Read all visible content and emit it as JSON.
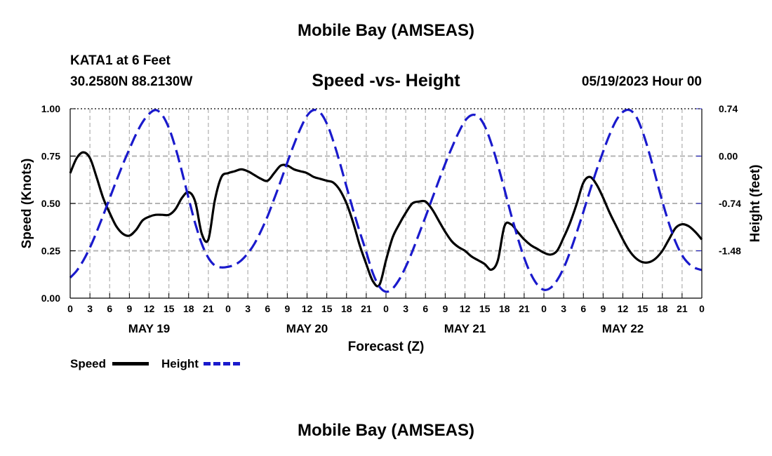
{
  "header": {
    "title": "Mobile Bay (AMSEAS)",
    "station": "KATA1 at 6 Feet",
    "coordinates": "30.2580N  88.2130W",
    "subtitle": "Speed -vs- Height",
    "run_time": "05/19/2023 Hour 00"
  },
  "footer": {
    "title": "Mobile Bay (AMSEAS)"
  },
  "legend": {
    "speed_label": "Speed",
    "height_label": "Height",
    "speed_color": "#000000",
    "height_color": "#1a1acc"
  },
  "chart_data": {
    "type": "line",
    "title": "Speed -vs- Height",
    "xlabel": "Forecast (Z)",
    "ylabel_left": "Speed (Knots)",
    "ylabel_right": "Height (feet)",
    "xlim": [
      0,
      96
    ],
    "ylim_left": [
      0,
      1
    ],
    "ylim_right": [
      -2.22,
      0.74
    ],
    "left_ticks": [
      {
        "value": 0,
        "label": "0.00"
      },
      {
        "value": 0.25,
        "label": "0.25"
      },
      {
        "value": 0.5,
        "label": "0.50"
      },
      {
        "value": 0.75,
        "label": "0.75"
      },
      {
        "value": 1.0,
        "label": "1.00"
      }
    ],
    "right_ticks": [
      {
        "value": 0.74,
        "label": "0.74"
      },
      {
        "value": 0.0,
        "label": "0.00"
      },
      {
        "value": -0.74,
        "label": "-0.74"
      },
      {
        "value": -1.48,
        "label": "-1.48"
      }
    ],
    "x_ticks": [
      {
        "hour": 0,
        "label": "0"
      },
      {
        "hour": 3,
        "label": "3"
      },
      {
        "hour": 6,
        "label": "6"
      },
      {
        "hour": 9,
        "label": "9"
      },
      {
        "hour": 12,
        "label": "12"
      },
      {
        "hour": 15,
        "label": "15"
      },
      {
        "hour": 18,
        "label": "18"
      },
      {
        "hour": 21,
        "label": "21"
      },
      {
        "hour": 24,
        "label": "0"
      },
      {
        "hour": 27,
        "label": "3"
      },
      {
        "hour": 30,
        "label": "6"
      },
      {
        "hour": 33,
        "label": "9"
      },
      {
        "hour": 36,
        "label": "12"
      },
      {
        "hour": 39,
        "label": "15"
      },
      {
        "hour": 42,
        "label": "18"
      },
      {
        "hour": 45,
        "label": "21"
      },
      {
        "hour": 48,
        "label": "0"
      },
      {
        "hour": 51,
        "label": "3"
      },
      {
        "hour": 54,
        "label": "6"
      },
      {
        "hour": 57,
        "label": "9"
      },
      {
        "hour": 60,
        "label": "12"
      },
      {
        "hour": 63,
        "label": "15"
      },
      {
        "hour": 66,
        "label": "18"
      },
      {
        "hour": 69,
        "label": "21"
      },
      {
        "hour": 72,
        "label": "0"
      },
      {
        "hour": 75,
        "label": "3"
      },
      {
        "hour": 78,
        "label": "6"
      },
      {
        "hour": 81,
        "label": "9"
      },
      {
        "hour": 84,
        "label": "12"
      },
      {
        "hour": 87,
        "label": "15"
      },
      {
        "hour": 90,
        "label": "18"
      },
      {
        "hour": 93,
        "label": "21"
      },
      {
        "hour": 96,
        "label": "0"
      }
    ],
    "day_labels": [
      {
        "hour": 12,
        "label": "MAY 19"
      },
      {
        "hour": 36,
        "label": "MAY 20"
      },
      {
        "hour": 60,
        "label": "MAY 21"
      },
      {
        "hour": 84,
        "label": "MAY 22"
      }
    ],
    "series": [
      {
        "name": "Speed",
        "axis": "left",
        "style": "solid",
        "x": [
          0,
          1,
          2,
          3,
          4,
          5,
          6,
          7,
          8,
          9,
          10,
          11,
          12,
          13,
          14,
          15,
          16,
          17,
          18,
          19,
          20,
          21,
          22,
          23,
          24,
          25,
          26,
          27,
          28,
          29,
          30,
          31,
          32,
          33,
          34,
          35,
          36,
          37,
          38,
          39,
          40,
          41,
          42,
          43,
          44,
          45,
          46,
          47,
          48,
          49,
          50,
          51,
          52,
          53,
          54,
          55,
          56,
          57,
          58,
          59,
          60,
          61,
          62,
          63,
          64,
          65,
          66,
          67,
          68,
          69,
          70,
          71,
          72,
          73,
          74,
          75,
          76,
          77,
          78,
          79,
          80,
          81,
          82,
          83,
          84,
          85,
          86,
          87,
          88,
          89,
          90,
          91,
          92,
          93,
          94,
          95,
          96
        ],
        "values": [
          0.66,
          0.74,
          0.77,
          0.74,
          0.64,
          0.53,
          0.45,
          0.38,
          0.34,
          0.33,
          0.36,
          0.41,
          0.43,
          0.44,
          0.44,
          0.44,
          0.47,
          0.53,
          0.56,
          0.51,
          0.34,
          0.31,
          0.52,
          0.64,
          0.66,
          0.67,
          0.68,
          0.67,
          0.65,
          0.63,
          0.62,
          0.66,
          0.7,
          0.7,
          0.68,
          0.67,
          0.66,
          0.64,
          0.63,
          0.62,
          0.61,
          0.57,
          0.5,
          0.4,
          0.28,
          0.18,
          0.09,
          0.07,
          0.2,
          0.32,
          0.39,
          0.45,
          0.5,
          0.51,
          0.51,
          0.47,
          0.41,
          0.35,
          0.3,
          0.27,
          0.25,
          0.22,
          0.2,
          0.18,
          0.15,
          0.2,
          0.38,
          0.39,
          0.35,
          0.31,
          0.28,
          0.26,
          0.24,
          0.23,
          0.25,
          0.32,
          0.4,
          0.5,
          0.61,
          0.64,
          0.6,
          0.53,
          0.45,
          0.38,
          0.31,
          0.25,
          0.21,
          0.19,
          0.19,
          0.21,
          0.25,
          0.31,
          0.37,
          0.39,
          0.38,
          0.35,
          0.31
        ]
      },
      {
        "name": "Height",
        "axis": "right",
        "style": "dashed",
        "x": [
          0,
          1,
          2,
          3,
          4,
          5,
          6,
          7,
          8,
          9,
          10,
          11,
          12,
          13,
          14,
          15,
          16,
          17,
          18,
          19,
          20,
          21,
          22,
          23,
          24,
          25,
          26,
          27,
          28,
          29,
          30,
          31,
          32,
          33,
          34,
          35,
          36,
          37,
          38,
          39,
          40,
          41,
          42,
          43,
          44,
          45,
          46,
          47,
          48,
          49,
          50,
          51,
          52,
          53,
          54,
          55,
          56,
          57,
          58,
          59,
          60,
          61,
          62,
          63,
          64,
          65,
          66,
          67,
          68,
          69,
          70,
          71,
          72,
          73,
          74,
          75,
          76,
          77,
          78,
          79,
          80,
          81,
          82,
          83,
          84,
          85,
          86,
          87,
          88,
          89,
          90,
          91,
          92,
          93,
          94,
          95,
          96
        ],
        "values": [
          -1.9,
          -1.79,
          -1.63,
          -1.43,
          -1.19,
          -0.93,
          -0.66,
          -0.39,
          -0.13,
          0.11,
          0.34,
          0.53,
          0.66,
          0.72,
          0.64,
          0.44,
          0.13,
          -0.25,
          -0.66,
          -1.05,
          -1.37,
          -1.59,
          -1.71,
          -1.74,
          -1.73,
          -1.7,
          -1.63,
          -1.52,
          -1.37,
          -1.17,
          -0.94,
          -0.67,
          -0.39,
          -0.1,
          0.18,
          0.43,
          0.63,
          0.72,
          0.68,
          0.51,
          0.23,
          -0.11,
          -0.48,
          -0.84,
          -1.18,
          -1.5,
          -1.83,
          -2.04,
          -2.12,
          -2.07,
          -1.93,
          -1.73,
          -1.49,
          -1.22,
          -0.95,
          -0.67,
          -0.39,
          -0.12,
          0.13,
          0.36,
          0.55,
          0.64,
          0.62,
          0.47,
          0.2,
          -0.14,
          -0.52,
          -0.91,
          -1.27,
          -1.59,
          -1.84,
          -2.01,
          -2.09,
          -2.06,
          -1.94,
          -1.75,
          -1.49,
          -1.19,
          -0.87,
          -0.54,
          -0.22,
          0.07,
          0.34,
          0.56,
          0.69,
          0.72,
          0.62,
          0.38,
          0.05,
          -0.33,
          -0.71,
          -1.05,
          -1.34,
          -1.55,
          -1.68,
          -1.75,
          -1.78
        ]
      }
    ]
  }
}
